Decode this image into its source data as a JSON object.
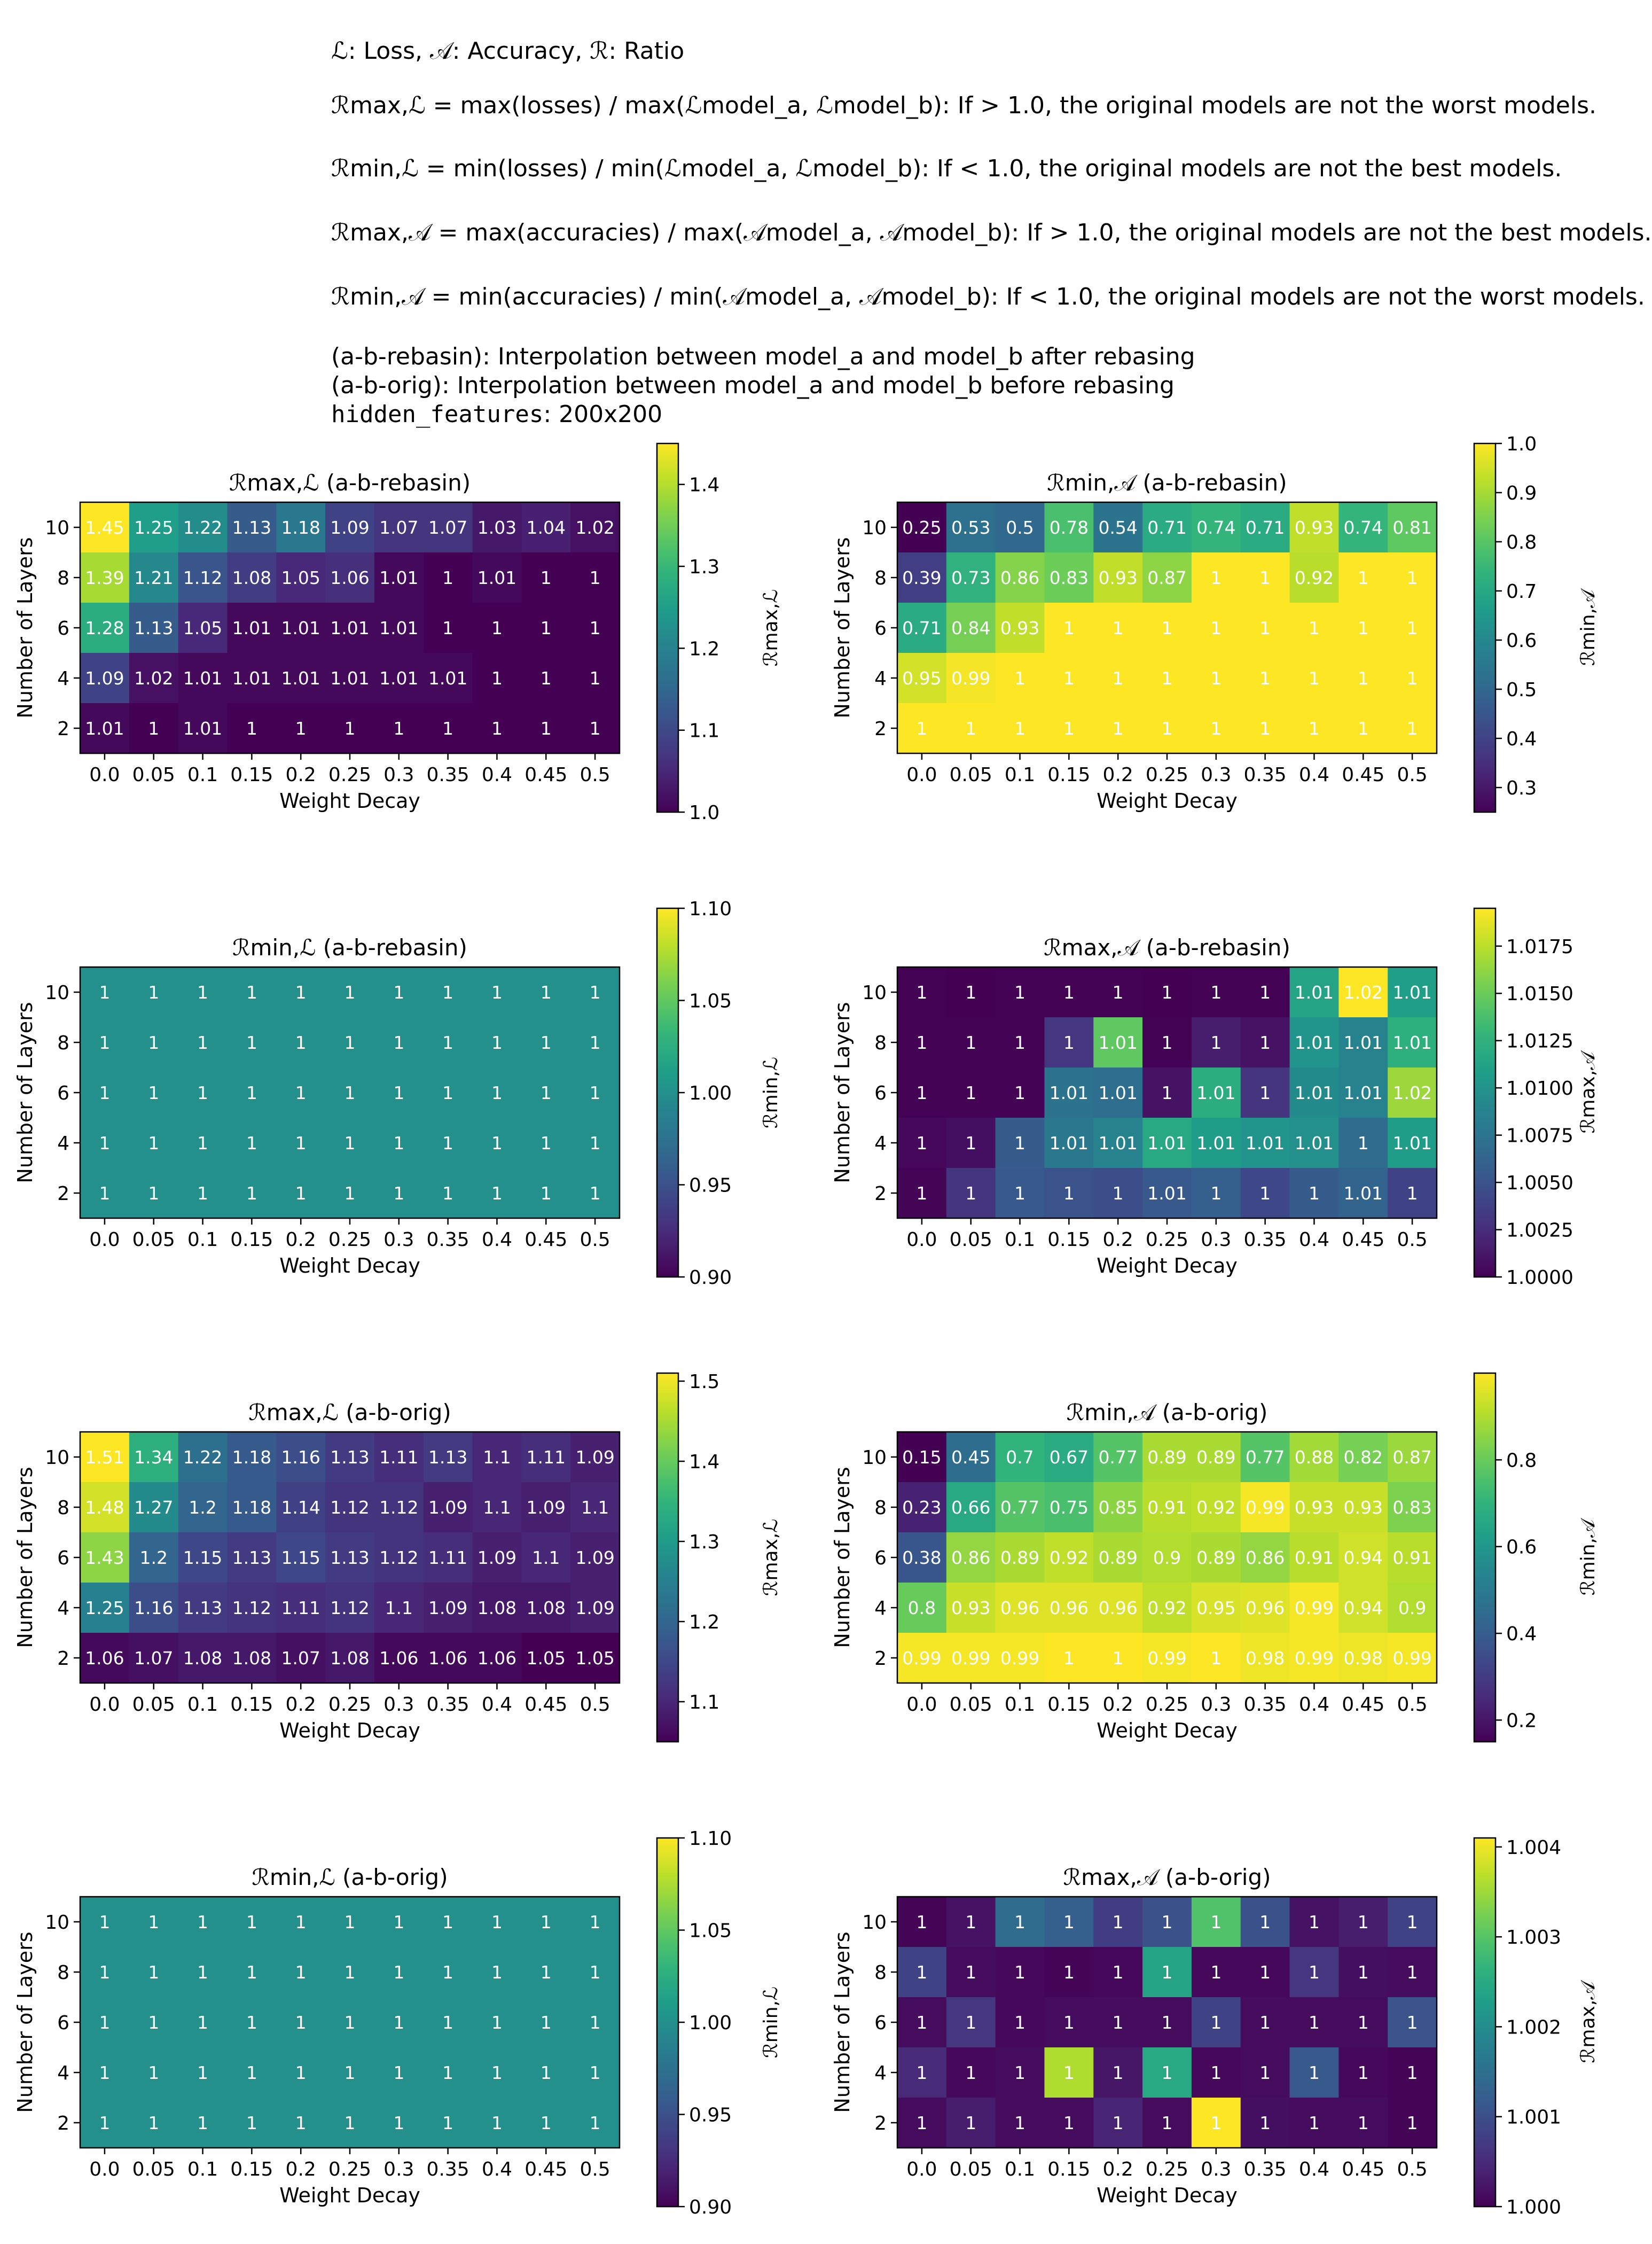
{
  "header": {
    "legend_line": "ℒ: Loss, 𝒜: Accuracy, ℛ: Ratio",
    "def_max_loss": "ℛmax,ℒ = max(losses) / max(ℒmodel_a, ℒmodel_b): If > 1.0, the original models are not the worst models.",
    "def_min_loss": "ℛmin,ℒ = min(losses) / min(ℒmodel_a, ℒmodel_b): If < 1.0, the original models are not the best models.",
    "def_max_acc": "ℛmax,𝒜 = max(accuracies) / max(𝒜model_a, 𝒜model_b): If > 1.0, the original models are not the best models.",
    "def_min_acc": "ℛmin,𝒜 = min(accuracies) / min(𝒜model_a, 𝒜model_b): If < 1.0, the original models are not the worst models.",
    "rebasin_note": "(a-b-rebasin): Interpolation between model_a and model_b after rebasing",
    "orig_note": "(a-b-orig): Interpolation between model_a and model_b before rebasing",
    "hidden_label": "hidden_features",
    "hidden_value": ": 200x200"
  },
  "colormap": [
    "#440154",
    "#482878",
    "#3e4989",
    "#31688e",
    "#26828e",
    "#1f9e89",
    "#35b779",
    "#6ece58",
    "#b5de2b",
    "#fde725"
  ],
  "chart_data": [
    {
      "type": "heatmap",
      "title": "ℛmax,ℒ (a-b-rebasin)",
      "xlabel": "Weight Decay",
      "ylabel": "Number of Layers",
      "cbar_label": "ℛmax,ℒ",
      "x": [
        "0.0",
        "0.05",
        "0.1",
        "0.15",
        "0.2",
        "0.25",
        "0.3",
        "0.35",
        "0.4",
        "0.45",
        "0.5"
      ],
      "y": [
        "10",
        "8",
        "6",
        "4",
        "2"
      ],
      "values": [
        [
          1.45,
          1.25,
          1.22,
          1.13,
          1.18,
          1.09,
          1.07,
          1.07,
          1.03,
          1.04,
          1.02
        ],
        [
          1.39,
          1.21,
          1.12,
          1.08,
          1.05,
          1.06,
          1.01,
          1.0,
          1.01,
          1.0,
          1.0
        ],
        [
          1.28,
          1.13,
          1.05,
          1.01,
          1.01,
          1.01,
          1.01,
          1.0,
          1.0,
          1.0,
          1.0
        ],
        [
          1.09,
          1.02,
          1.01,
          1.01,
          1.01,
          1.01,
          1.01,
          1.01,
          1.0,
          1.0,
          1.0
        ],
        [
          1.01,
          1.0,
          1.01,
          1.0,
          1.0,
          1.0,
          1.0,
          1.0,
          1.0,
          1.0,
          1.0
        ]
      ],
      "vmin": 1.0,
      "vmax": 1.45,
      "cbar_ticks": [
        "1.0",
        "1.1",
        "1.2",
        "1.3",
        "1.4"
      ]
    },
    {
      "type": "heatmap",
      "title": "ℛmin,𝒜 (a-b-rebasin)",
      "xlabel": "Weight Decay",
      "ylabel": "Number of Layers",
      "cbar_label": "ℛmin,𝒜",
      "x": [
        "0.0",
        "0.05",
        "0.1",
        "0.15",
        "0.2",
        "0.25",
        "0.3",
        "0.35",
        "0.4",
        "0.45",
        "0.5"
      ],
      "y": [
        "10",
        "8",
        "6",
        "4",
        "2"
      ],
      "values": [
        [
          0.25,
          0.53,
          0.5,
          0.78,
          0.54,
          0.71,
          0.74,
          0.71,
          0.93,
          0.74,
          0.81
        ],
        [
          0.39,
          0.73,
          0.86,
          0.83,
          0.93,
          0.87,
          1.0,
          1.0,
          0.92,
          1.0,
          1.0
        ],
        [
          0.71,
          0.84,
          0.93,
          1.0,
          1.0,
          1.0,
          1.0,
          1.0,
          1.0,
          1.0,
          1.0
        ],
        [
          0.95,
          0.99,
          1.0,
          1.0,
          1.0,
          1.0,
          1.0,
          1.0,
          1.0,
          1.0,
          1.0
        ],
        [
          1.0,
          1.0,
          1.0,
          1.0,
          1.0,
          1.0,
          1.0,
          1.0,
          1.0,
          1.0,
          1.0
        ]
      ],
      "vmin": 0.25,
      "vmax": 1.0,
      "cbar_ticks": [
        "0.3",
        "0.4",
        "0.5",
        "0.6",
        "0.7",
        "0.8",
        "0.9",
        "1.0"
      ]
    },
    {
      "type": "heatmap",
      "title": "ℛmin,ℒ (a-b-rebasin)",
      "xlabel": "Weight Decay",
      "ylabel": "Number of Layers",
      "cbar_label": "ℛmin,ℒ",
      "x": [
        "0.0",
        "0.05",
        "0.1",
        "0.15",
        "0.2",
        "0.25",
        "0.3",
        "0.35",
        "0.4",
        "0.45",
        "0.5"
      ],
      "y": [
        "10",
        "8",
        "6",
        "4",
        "2"
      ],
      "values": [
        [
          1.0,
          1.0,
          1.0,
          1.0,
          1.0,
          1.0,
          1.0,
          1.0,
          1.0,
          1.0,
          1.0
        ],
        [
          1.0,
          1.0,
          1.0,
          1.0,
          1.0,
          1.0,
          1.0,
          1.0,
          1.0,
          1.0,
          1.0
        ],
        [
          1.0,
          1.0,
          1.0,
          1.0,
          1.0,
          1.0,
          1.0,
          1.0,
          1.0,
          1.0,
          1.0
        ],
        [
          1.0,
          1.0,
          1.0,
          1.0,
          1.0,
          1.0,
          1.0,
          1.0,
          1.0,
          1.0,
          1.0
        ],
        [
          1.0,
          1.0,
          1.0,
          1.0,
          1.0,
          1.0,
          1.0,
          1.0,
          1.0,
          1.0,
          1.0
        ]
      ],
      "vmin": 0.9,
      "vmax": 1.1,
      "cbar_ticks": [
        "0.90",
        "0.95",
        "1.00",
        "1.05",
        "1.10"
      ]
    },
    {
      "type": "heatmap",
      "title": "ℛmax,𝒜 (a-b-rebasin)",
      "xlabel": "Weight Decay",
      "ylabel": "Number of Layers",
      "cbar_label": "ℛmax,𝒜",
      "x": [
        "0.0",
        "0.05",
        "0.1",
        "0.15",
        "0.2",
        "0.25",
        "0.3",
        "0.35",
        "0.4",
        "0.45",
        "0.5"
      ],
      "y": [
        "10",
        "8",
        "6",
        "4",
        "2"
      ],
      "values": [
        [
          1.0,
          1.0,
          1.0,
          1.0,
          1.0,
          1.0,
          1.0,
          1.0,
          1.01,
          1.02,
          1.01
        ],
        [
          1.0,
          1.0,
          1.0,
          1.0,
          1.01,
          1.0,
          1.0,
          1.0,
          1.01,
          1.01,
          1.01
        ],
        [
          1.0,
          1.0,
          1.0,
          1.01,
          1.01,
          1.0,
          1.01,
          1.0,
          1.01,
          1.01,
          1.02
        ],
        [
          1.0,
          1.0,
          1.0,
          1.01,
          1.01,
          1.01,
          1.01,
          1.01,
          1.01,
          1.0,
          1.01
        ],
        [
          1.0,
          1.0,
          1.0,
          1.0,
          1.0,
          1.01,
          1.0,
          1.0,
          1.0,
          1.01,
          1.0
        ]
      ],
      "colors": [
        [
          0.002,
          0.001,
          0.003,
          0.004,
          0.002,
          0.001,
          0.003,
          0.004,
          0.58,
          1.0,
          0.56
        ],
        [
          0.003,
          0.002,
          0.003,
          0.16,
          0.75,
          0.002,
          0.08,
          0.05,
          0.52,
          0.45,
          0.63
        ],
        [
          0.004,
          0.003,
          0.004,
          0.38,
          0.36,
          0.05,
          0.62,
          0.15,
          0.48,
          0.45,
          0.85
        ],
        [
          0.02,
          0.04,
          0.29,
          0.4,
          0.45,
          0.6,
          0.55,
          0.52,
          0.5,
          0.35,
          0.55
        ],
        [
          0.01,
          0.15,
          0.28,
          0.26,
          0.24,
          0.28,
          0.3,
          0.22,
          0.29,
          0.32,
          0.2
        ]
      ],
      "vmin": 1.0,
      "vmax": 1.0195,
      "cbar_ticks": [
        "1.0000",
        "1.0025",
        "1.0050",
        "1.0075",
        "1.0100",
        "1.0125",
        "1.0150",
        "1.0175"
      ]
    },
    {
      "type": "heatmap",
      "title": "ℛmax,ℒ (a-b-orig)",
      "xlabel": "Weight Decay",
      "ylabel": "Number of Layers",
      "cbar_label": "ℛmax,ℒ",
      "x": [
        "0.0",
        "0.05",
        "0.1",
        "0.15",
        "0.2",
        "0.25",
        "0.3",
        "0.35",
        "0.4",
        "0.45",
        "0.5"
      ],
      "y": [
        "10",
        "8",
        "6",
        "4",
        "2"
      ],
      "values": [
        [
          1.51,
          1.34,
          1.22,
          1.18,
          1.16,
          1.13,
          1.11,
          1.13,
          1.1,
          1.11,
          1.09
        ],
        [
          1.48,
          1.27,
          1.2,
          1.18,
          1.14,
          1.12,
          1.12,
          1.09,
          1.1,
          1.09,
          1.1
        ],
        [
          1.43,
          1.2,
          1.15,
          1.13,
          1.15,
          1.13,
          1.12,
          1.11,
          1.09,
          1.1,
          1.09
        ],
        [
          1.25,
          1.16,
          1.13,
          1.12,
          1.11,
          1.12,
          1.1,
          1.09,
          1.08,
          1.08,
          1.09
        ],
        [
          1.06,
          1.07,
          1.08,
          1.08,
          1.07,
          1.08,
          1.06,
          1.06,
          1.06,
          1.05,
          1.05
        ]
      ],
      "vmin": 1.05,
      "vmax": 1.51,
      "cbar_ticks": [
        "1.1",
        "1.2",
        "1.3",
        "1.4",
        "1.5"
      ]
    },
    {
      "type": "heatmap",
      "title": "ℛmin,𝒜 (a-b-orig)",
      "xlabel": "Weight Decay",
      "ylabel": "Number of Layers",
      "cbar_label": "ℛmin,𝒜",
      "x": [
        "0.0",
        "0.05",
        "0.1",
        "0.15",
        "0.2",
        "0.25",
        "0.3",
        "0.35",
        "0.4",
        "0.45",
        "0.5"
      ],
      "y": [
        "10",
        "8",
        "6",
        "4",
        "2"
      ],
      "values": [
        [
          0.15,
          0.45,
          0.7,
          0.67,
          0.77,
          0.89,
          0.89,
          0.77,
          0.88,
          0.82,
          0.87
        ],
        [
          0.23,
          0.66,
          0.77,
          0.75,
          0.85,
          0.91,
          0.92,
          0.99,
          0.93,
          0.93,
          0.83
        ],
        [
          0.38,
          0.86,
          0.89,
          0.92,
          0.89,
          0.9,
          0.89,
          0.86,
          0.91,
          0.94,
          0.91
        ],
        [
          0.8,
          0.93,
          0.96,
          0.96,
          0.96,
          0.92,
          0.95,
          0.96,
          0.99,
          0.94,
          0.9
        ],
        [
          0.99,
          0.99,
          0.99,
          1.0,
          1.0,
          0.99,
          1.0,
          0.98,
          0.99,
          0.98,
          0.99
        ]
      ],
      "vmin": 0.15,
      "vmax": 1.0,
      "cbar_ticks": [
        "0.2",
        "0.4",
        "0.6",
        "0.8"
      ]
    },
    {
      "type": "heatmap",
      "title": "ℛmin,ℒ (a-b-orig)",
      "xlabel": "Weight Decay",
      "ylabel": "Number of Layers",
      "cbar_label": "ℛmin,ℒ",
      "x": [
        "0.0",
        "0.05",
        "0.1",
        "0.15",
        "0.2",
        "0.25",
        "0.3",
        "0.35",
        "0.4",
        "0.45",
        "0.5"
      ],
      "y": [
        "10",
        "8",
        "6",
        "4",
        "2"
      ],
      "values": [
        [
          1.0,
          1.0,
          1.0,
          1.0,
          1.0,
          1.0,
          1.0,
          1.0,
          1.0,
          1.0,
          1.0
        ],
        [
          1.0,
          1.0,
          1.0,
          1.0,
          1.0,
          1.0,
          1.0,
          1.0,
          1.0,
          1.0,
          1.0
        ],
        [
          1.0,
          1.0,
          1.0,
          1.0,
          1.0,
          1.0,
          1.0,
          1.0,
          1.0,
          1.0,
          1.0
        ],
        [
          1.0,
          1.0,
          1.0,
          1.0,
          1.0,
          1.0,
          1.0,
          1.0,
          1.0,
          1.0,
          1.0
        ],
        [
          1.0,
          1.0,
          1.0,
          1.0,
          1.0,
          1.0,
          1.0,
          1.0,
          1.0,
          1.0,
          1.0
        ]
      ],
      "vmin": 0.9,
      "vmax": 1.1,
      "cbar_ticks": [
        "0.90",
        "0.95",
        "1.00",
        "1.05",
        "1.10"
      ]
    },
    {
      "type": "heatmap",
      "title": "ℛmax,𝒜 (a-b-orig)",
      "xlabel": "Weight Decay",
      "ylabel": "Number of Layers",
      "cbar_label": "ℛmax,𝒜",
      "x": [
        "0.0",
        "0.05",
        "0.1",
        "0.15",
        "0.2",
        "0.25",
        "0.3",
        "0.35",
        "0.4",
        "0.45",
        "0.5"
      ],
      "y": [
        "10",
        "8",
        "6",
        "4",
        "2"
      ],
      "values": [
        [
          1.0,
          1.0,
          1.0,
          1.0,
          1.0,
          1.0,
          1.0,
          1.0,
          1.0,
          1.0,
          1.0
        ],
        [
          1.0,
          1.0,
          1.0,
          1.0,
          1.0,
          1.0,
          1.0,
          1.0,
          1.0,
          1.0,
          1.0
        ],
        [
          1.0,
          1.0,
          1.0,
          1.0,
          1.0,
          1.0,
          1.0,
          1.0,
          1.0,
          1.0,
          1.0
        ],
        [
          1.0,
          1.0,
          1.0,
          1.0,
          1.0,
          1.0,
          1.0,
          1.0,
          1.0,
          1.0,
          1.0
        ],
        [
          1.0,
          1.0,
          1.0,
          1.0,
          1.0,
          1.0,
          1.0,
          1.0,
          1.0,
          1.0,
          1.0
        ]
      ],
      "colors": [
        [
          0.01,
          0.05,
          0.35,
          0.3,
          0.18,
          0.25,
          0.72,
          0.25,
          0.05,
          0.08,
          0.2
        ],
        [
          0.2,
          0.03,
          0.02,
          0.01,
          0.02,
          0.58,
          0.02,
          0.02,
          0.16,
          0.04,
          0.03
        ],
        [
          0.03,
          0.16,
          0.02,
          0.03,
          0.03,
          0.03,
          0.2,
          0.03,
          0.03,
          0.03,
          0.26
        ],
        [
          0.12,
          0.02,
          0.03,
          0.88,
          0.06,
          0.6,
          0.02,
          0.03,
          0.28,
          0.02,
          0.01
        ],
        [
          0.03,
          0.08,
          0.03,
          0.03,
          0.1,
          0.03,
          1.0,
          0.04,
          0.03,
          0.03,
          0.01
        ]
      ],
      "vmin": 1.0,
      "vmax": 1.0041,
      "cbar_ticks": [
        "1.000",
        "1.001",
        "1.002",
        "1.003",
        "1.004"
      ]
    }
  ]
}
